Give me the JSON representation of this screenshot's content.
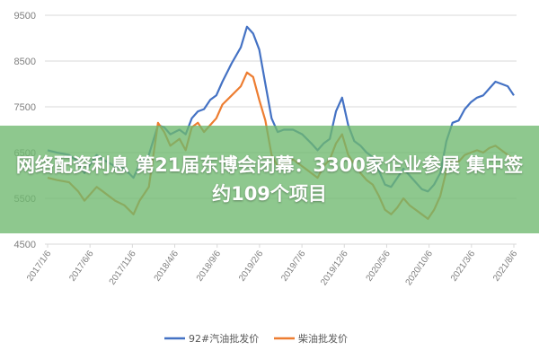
{
  "headline": "网络配资利息 第21届东博会闭幕：3300家企业参展 集中签约109个项目",
  "chart_data": {
    "type": "line",
    "y_ticks": [
      "9500",
      "8500",
      "7500",
      "6500",
      "5500",
      "4500"
    ],
    "ylim": [
      4500,
      9500
    ],
    "x_ticks": [
      "2017/1/6",
      "2017/6/6",
      "2017/11/6",
      "2018/4/6",
      "2018/9/6",
      "2019/2/6",
      "2019/7/6",
      "2019/12/6",
      "2020/5/6",
      "2020/10/6",
      "2021/3/6",
      "2021/8/6"
    ],
    "grid": "horizontal",
    "legend_position": "bottom",
    "series": [
      {
        "name": "92#汽油批发价",
        "color": "#4472c4",
        "points": [
          [
            0,
            6550
          ],
          [
            0.3,
            6500
          ],
          [
            0.7,
            6450
          ],
          [
            1.0,
            6300
          ],
          [
            1.2,
            6050
          ],
          [
            1.6,
            6450
          ],
          [
            1.8,
            6350
          ],
          [
            2.2,
            6200
          ],
          [
            2.5,
            6150
          ],
          [
            2.8,
            5950
          ],
          [
            3.0,
            6250
          ],
          [
            3.3,
            6450
          ],
          [
            3.6,
            7100
          ],
          [
            3.8,
            7050
          ],
          [
            4.0,
            6900
          ],
          [
            4.3,
            7000
          ],
          [
            4.5,
            6900
          ],
          [
            4.7,
            7250
          ],
          [
            4.9,
            7400
          ],
          [
            5.1,
            7450
          ],
          [
            5.3,
            7650
          ],
          [
            5.5,
            7750
          ],
          [
            5.7,
            8050
          ],
          [
            6.0,
            8450
          ],
          [
            6.3,
            8800
          ],
          [
            6.5,
            9250
          ],
          [
            6.7,
            9100
          ],
          [
            6.9,
            8750
          ],
          [
            7.1,
            8000
          ],
          [
            7.3,
            7250
          ],
          [
            7.5,
            6950
          ],
          [
            7.7,
            7000
          ],
          [
            8.0,
            7000
          ],
          [
            8.3,
            6900
          ],
          [
            8.6,
            6700
          ],
          [
            8.8,
            6550
          ],
          [
            9.0,
            6700
          ],
          [
            9.2,
            6800
          ],
          [
            9.4,
            7400
          ],
          [
            9.6,
            7700
          ],
          [
            9.8,
            7100
          ],
          [
            10.0,
            6750
          ],
          [
            10.2,
            6650
          ],
          [
            10.4,
            6500
          ],
          [
            10.6,
            6400
          ],
          [
            10.8,
            6100
          ],
          [
            11.0,
            5800
          ],
          [
            11.2,
            5750
          ],
          [
            11.4,
            5950
          ],
          [
            11.6,
            6150
          ],
          [
            11.8,
            6000
          ],
          [
            12.0,
            5850
          ],
          [
            12.2,
            5700
          ],
          [
            12.4,
            5650
          ],
          [
            12.6,
            5800
          ],
          [
            12.8,
            6050
          ],
          [
            13.0,
            6750
          ],
          [
            13.2,
            7150
          ],
          [
            13.4,
            7200
          ],
          [
            13.6,
            7450
          ],
          [
            13.8,
            7600
          ],
          [
            14.0,
            7700
          ],
          [
            14.2,
            7750
          ],
          [
            14.4,
            7900
          ],
          [
            14.6,
            8050
          ],
          [
            14.8,
            8000
          ],
          [
            15.0,
            7950
          ],
          [
            15.2,
            7750
          ]
        ]
      },
      {
        "name": "柴油批发价",
        "color": "#ed7d31",
        "points": [
          [
            0,
            5950
          ],
          [
            0.3,
            5900
          ],
          [
            0.7,
            5850
          ],
          [
            1.0,
            5650
          ],
          [
            1.2,
            5450
          ],
          [
            1.6,
            5750
          ],
          [
            1.8,
            5650
          ],
          [
            2.2,
            5450
          ],
          [
            2.5,
            5350
          ],
          [
            2.8,
            5150
          ],
          [
            3.0,
            5450
          ],
          [
            3.3,
            5750
          ],
          [
            3.6,
            7150
          ],
          [
            3.8,
            6950
          ],
          [
            4.0,
            6650
          ],
          [
            4.3,
            6800
          ],
          [
            4.5,
            6550
          ],
          [
            4.7,
            7050
          ],
          [
            4.9,
            7150
          ],
          [
            5.1,
            6950
          ],
          [
            5.3,
            7100
          ],
          [
            5.5,
            7250
          ],
          [
            5.7,
            7550
          ],
          [
            6.0,
            7750
          ],
          [
            6.3,
            7950
          ],
          [
            6.5,
            8250
          ],
          [
            6.7,
            8150
          ],
          [
            6.9,
            7650
          ],
          [
            7.1,
            7200
          ],
          [
            7.3,
            6450
          ],
          [
            7.5,
            6200
          ],
          [
            7.7,
            6250
          ],
          [
            8.0,
            6350
          ],
          [
            8.3,
            6200
          ],
          [
            8.6,
            6050
          ],
          [
            8.8,
            5950
          ],
          [
            9.0,
            6200
          ],
          [
            9.2,
            6350
          ],
          [
            9.4,
            6700
          ],
          [
            9.6,
            6900
          ],
          [
            9.8,
            6450
          ],
          [
            10.0,
            6250
          ],
          [
            10.2,
            6050
          ],
          [
            10.4,
            5900
          ],
          [
            10.6,
            5800
          ],
          [
            10.8,
            5550
          ],
          [
            11.0,
            5250
          ],
          [
            11.2,
            5150
          ],
          [
            11.4,
            5300
          ],
          [
            11.6,
            5500
          ],
          [
            11.8,
            5350
          ],
          [
            12.0,
            5250
          ],
          [
            12.2,
            5150
          ],
          [
            12.4,
            5050
          ],
          [
            12.6,
            5250
          ],
          [
            12.8,
            5550
          ],
          [
            13.0,
            6100
          ],
          [
            13.2,
            6350
          ],
          [
            13.4,
            6300
          ],
          [
            13.6,
            6450
          ],
          [
            13.8,
            6500
          ],
          [
            14.0,
            6550
          ],
          [
            14.2,
            6500
          ],
          [
            14.4,
            6600
          ],
          [
            14.6,
            6650
          ],
          [
            14.8,
            6550
          ],
          [
            15.0,
            6450
          ],
          [
            15.2,
            6350
          ]
        ]
      }
    ]
  }
}
